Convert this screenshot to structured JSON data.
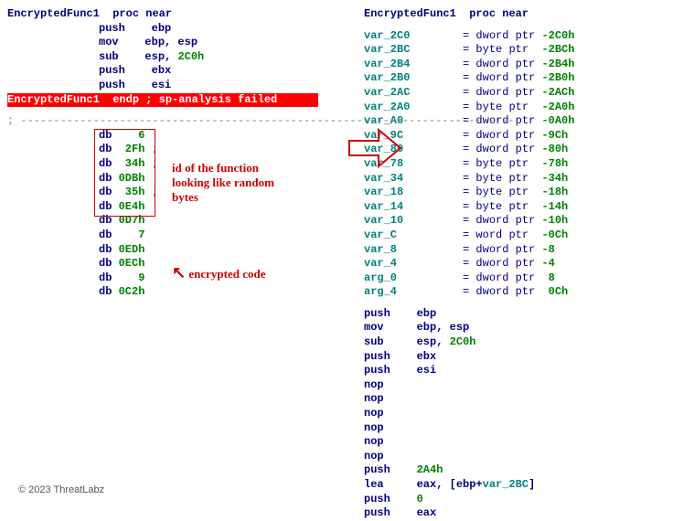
{
  "left": {
    "proc_name": "EncryptedFunc1",
    "proc_near": "proc near",
    "lines": [
      {
        "op": "push",
        "args": "ebp"
      },
      {
        "op": "mov",
        "args": "ebp, esp"
      },
      {
        "op": "sub",
        "args": "esp, ",
        "num": "2C0h"
      },
      {
        "op": "push",
        "args": "ebx"
      },
      {
        "op": "push",
        "args": "esi"
      }
    ],
    "endp_line": "EncryptedFunc1  endp ; sp-analysis failed",
    "dashes": "; ---------------------------------------------------------------------------",
    "db_boxed": [
      {
        "db": "db",
        "val": "    6"
      },
      {
        "db": "db",
        "val": "  2Fh",
        ";": " ;"
      },
      {
        "db": "db",
        "val": "  34h",
        ";": " ;"
      },
      {
        "db": "db",
        "val": " 0DBh"
      },
      {
        "db": "db",
        "val": "  35h",
        ";": " ;"
      },
      {
        "db": "db",
        "val": " 0E4h"
      }
    ],
    "db_rest": [
      {
        "db": "db",
        "val": " 0D7h"
      },
      {
        "db": "db",
        "val": "    7"
      },
      {
        "db": "db",
        "val": " 0EDh"
      },
      {
        "db": "db",
        "val": " 0ECh"
      },
      {
        "db": "db",
        "val": "    9"
      },
      {
        "db": "db",
        "val": " 0C2h"
      }
    ],
    "anno1": "id of the function\nlooking like random\nbytes",
    "anno2": "encrypted code"
  },
  "right": {
    "proc_name": "EncryptedFunc1",
    "proc_near": "proc near",
    "vars": [
      {
        "name": "var_2C0",
        "eq": "= dword ptr -2C0h"
      },
      {
        "name": "var_2BC",
        "eq": "= byte ptr  -2BCh"
      },
      {
        "name": "var_2B4",
        "eq": "= dword ptr -2B4h"
      },
      {
        "name": "var_2B0",
        "eq": "= dword ptr -2B0h"
      },
      {
        "name": "var_2AC",
        "eq": "= dword ptr -2ACh"
      },
      {
        "name": "var_2A0",
        "eq": "= byte ptr  -2A0h"
      },
      {
        "name": "var_A0",
        "eq": "= dword ptr -0A0h"
      },
      {
        "name": "var_9C",
        "eq": "= dword ptr -9Ch"
      },
      {
        "name": "var_80",
        "eq": "= dword ptr -80h"
      },
      {
        "name": "var_78",
        "eq": "= byte ptr  -78h"
      },
      {
        "name": "var_34",
        "eq": "= byte ptr  -34h"
      },
      {
        "name": "var_18",
        "eq": "= byte ptr  -18h"
      },
      {
        "name": "var_14",
        "eq": "= byte ptr  -14h"
      },
      {
        "name": "var_10",
        "eq": "= dword ptr -10h"
      },
      {
        "name": "var_C",
        "eq": "= word ptr  -0Ch"
      },
      {
        "name": "var_8",
        "eq": "= dword ptr -8"
      },
      {
        "name": "var_4",
        "eq": "= dword ptr -4"
      },
      {
        "name": "arg_0",
        "eq": "= dword ptr  8"
      },
      {
        "name": "arg_4",
        "eq": "= dword ptr  0Ch"
      }
    ],
    "asm": [
      {
        "op": "push",
        "args": "ebp"
      },
      {
        "op": "mov",
        "args": "ebp, esp"
      },
      {
        "op": "sub",
        "args": "esp, ",
        "num": "2C0h"
      },
      {
        "op": "push",
        "args": "ebx"
      },
      {
        "op": "push",
        "args": "esi"
      },
      {
        "op": "nop",
        "args": ""
      },
      {
        "op": "nop",
        "args": ""
      },
      {
        "op": "nop",
        "args": ""
      },
      {
        "op": "nop",
        "args": ""
      },
      {
        "op": "nop",
        "args": ""
      },
      {
        "op": "nop",
        "args": ""
      },
      {
        "op": "push",
        "args": "",
        "num": "2A4h"
      },
      {
        "op": "lea",
        "args": "eax, [ebp+",
        "varref": "var_2BC",
        "suffix": "]"
      },
      {
        "op": "push",
        "args": "",
        "num": "0"
      },
      {
        "op": "push",
        "args": "eax"
      }
    ]
  },
  "copyright": "© 2023 ThreatLabz"
}
